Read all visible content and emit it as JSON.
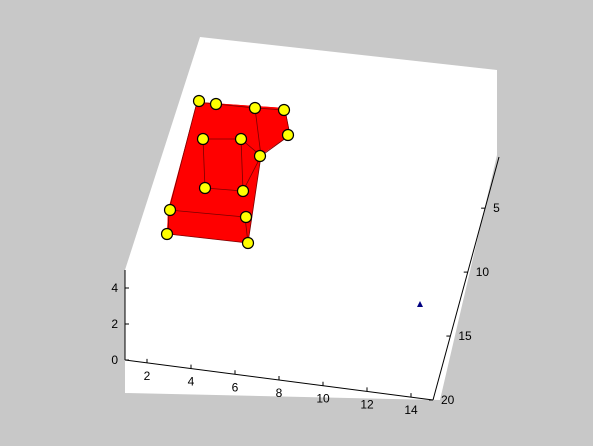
{
  "figure": {
    "background_color": "#c8c8c8",
    "plot_face_color": "#ffffff",
    "box_color": "#ff0000",
    "box_edge_color": "#7a0000",
    "marker_fill_color": "#ffff00",
    "marker_edge_color": "#000000",
    "triangle_color": "#000080"
  },
  "chart_data": {
    "type": "3d-axes",
    "title": "",
    "xlabel": "",
    "ylabel": "",
    "zlabel": "",
    "x_ticks": [
      "2",
      "4",
      "6",
      "8",
      "10",
      "12",
      "14"
    ],
    "y_ticks": [
      "5",
      "10",
      "15",
      "20"
    ],
    "z_ticks": [
      "0",
      "2",
      "4"
    ],
    "xlim": [
      1,
      15
    ],
    "ylim": [
      1,
      20
    ],
    "zlim": [
      0,
      5
    ],
    "objects": [
      {
        "kind": "red box",
        "marker_count": 14,
        "marker": "yellow circle"
      },
      {
        "kind": "marker",
        "marker": "triangle"
      }
    ]
  }
}
